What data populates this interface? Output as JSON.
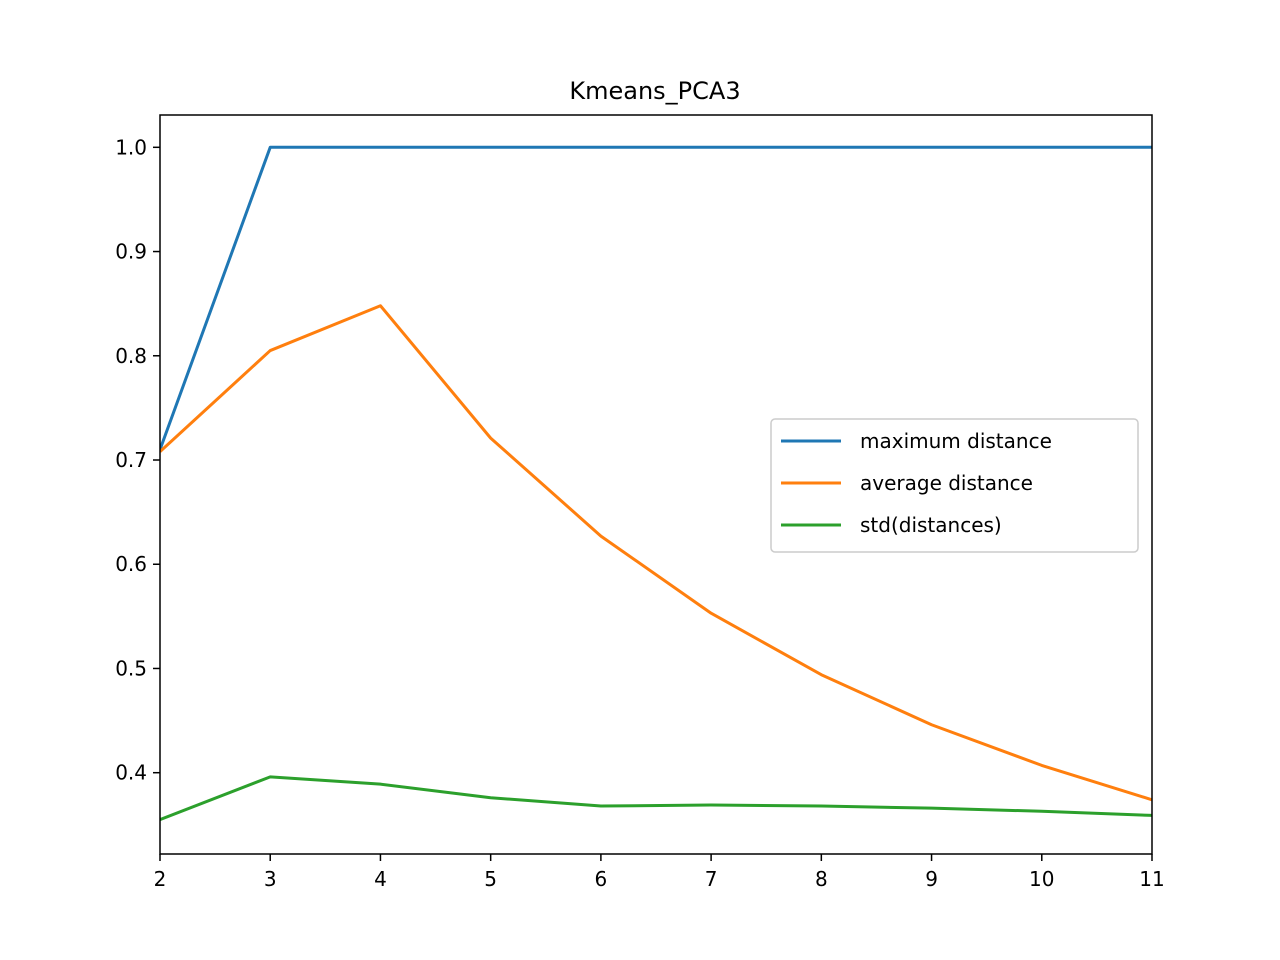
{
  "chart_data": {
    "type": "line",
    "title": "Kmeans_PCA3",
    "xlabel": "",
    "ylabel": "",
    "x": [
      2,
      3,
      4,
      5,
      6,
      7,
      8,
      9,
      10,
      11
    ],
    "xlim": [
      2,
      11
    ],
    "ylim": [
      0.322,
      1.031
    ],
    "xticks": [
      2,
      3,
      4,
      5,
      6,
      7,
      8,
      9,
      10,
      11
    ],
    "yticks": [
      0.4,
      0.5,
      0.6,
      0.7,
      0.8,
      0.9,
      1.0
    ],
    "ytick_labels": [
      "0.4",
      "0.5",
      "0.6",
      "0.7",
      "0.8",
      "0.9",
      "1.0"
    ],
    "grid": false,
    "legend_position": "center-right",
    "series": [
      {
        "name": "maximum distance",
        "color": "#1f77b4",
        "values": [
          0.71,
          1.0,
          1.0,
          1.0,
          1.0,
          1.0,
          1.0,
          1.0,
          1.0,
          1.0
        ]
      },
      {
        "name": "average distance",
        "color": "#ff7f0e",
        "values": [
          0.708,
          0.805,
          0.848,
          0.721,
          0.627,
          0.553,
          0.494,
          0.446,
          0.407,
          0.374
        ]
      },
      {
        "name": "std(distances)",
        "color": "#2ca02c",
        "values": [
          0.355,
          0.396,
          0.389,
          0.376,
          0.368,
          0.369,
          0.368,
          0.366,
          0.363,
          0.359
        ]
      }
    ]
  }
}
